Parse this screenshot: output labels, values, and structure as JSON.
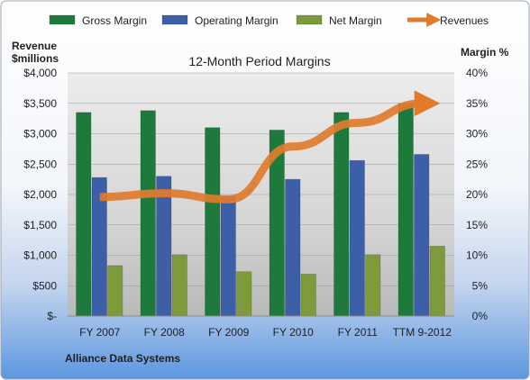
{
  "chart_data": {
    "type": "bar",
    "title": "12-Month Period Margins",
    "subtitle": "",
    "ylabel_left": "Revenue\n$millions",
    "ylabel_right": "Margin %",
    "footer": "Alliance Data Systems",
    "categories": [
      "FY 2007",
      "FY 2008",
      "FY 2009",
      "FY 2010",
      "FY 2011",
      "TTM 9-2012"
    ],
    "ylim_left": [
      0,
      4000
    ],
    "yticks_left": [
      "$-",
      "$500",
      "$1,000",
      "$1,500",
      "$2,000",
      "$2,500",
      "$3,000",
      "$3,500",
      "$4,000"
    ],
    "ylim_right": [
      0,
      40
    ],
    "yticks_right": [
      "0%",
      "5%",
      "10%",
      "15%",
      "20%",
      "25%",
      "30%",
      "35%",
      "40%"
    ],
    "series": [
      {
        "name": "Gross Margin",
        "kind": "bar",
        "axis": "right",
        "unit": "%",
        "color": "#1e7a3c",
        "values": [
          33.5,
          33.8,
          31.0,
          30.6,
          33.5,
          35.0
        ]
      },
      {
        "name": "Operating Margin",
        "kind": "bar",
        "axis": "right",
        "unit": "%",
        "color": "#3d5fa8",
        "values": [
          22.8,
          23.0,
          19.7,
          22.5,
          25.6,
          26.6
        ]
      },
      {
        "name": "Net Margin",
        "kind": "bar",
        "axis": "right",
        "unit": "%",
        "color": "#7d9b3a",
        "values": [
          8.3,
          10.1,
          7.3,
          6.9,
          10.1,
          11.5
        ]
      },
      {
        "name": "Revenues",
        "kind": "line",
        "axis": "left",
        "unit": "$ millions",
        "color": "#e07b2c",
        "values": [
          1960,
          2020,
          1920,
          2790,
          3180,
          3500
        ]
      }
    ],
    "legend_position": "top",
    "grid": true
  }
}
